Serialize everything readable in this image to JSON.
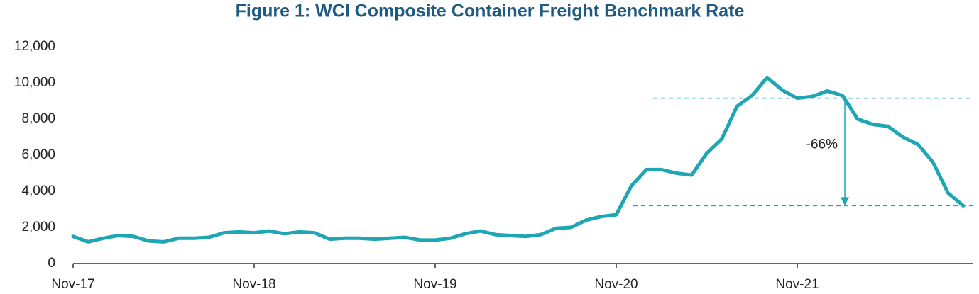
{
  "chart_data": {
    "type": "line",
    "title": "Figure 1: WCI Composite Container Freight Benchmark Rate",
    "categories": [
      "Nov-17",
      null,
      null,
      null,
      null,
      null,
      null,
      null,
      null,
      null,
      null,
      null,
      "Nov-18",
      null,
      null,
      null,
      null,
      null,
      null,
      null,
      null,
      null,
      null,
      null,
      "Nov-19",
      null,
      null,
      null,
      null,
      null,
      null,
      null,
      null,
      null,
      null,
      null,
      "Nov-20",
      null,
      null,
      null,
      null,
      null,
      null,
      null,
      null,
      null,
      null,
      null,
      "Nov-21",
      null,
      null,
      null,
      null,
      null,
      null,
      null,
      null,
      null,
      null,
      null
    ],
    "series": [
      {
        "name": "WCI Composite",
        "color": "#1ea6b4",
        "values": [
          1500,
          1200,
          1400,
          1550,
          1500,
          1250,
          1200,
          1400,
          1400,
          1450,
          1700,
          1750,
          1700,
          1800,
          1650,
          1750,
          1700,
          1350,
          1400,
          1400,
          1350,
          1400,
          1450,
          1300,
          1300,
          1400,
          1650,
          1800,
          1600,
          1550,
          1500,
          1600,
          1950,
          2000,
          2400,
          2600,
          2700,
          4300,
          5200,
          5200,
          5000,
          4900,
          6100,
          6900,
          8700,
          9300,
          10300,
          9600,
          9150,
          9250,
          9550,
          9300,
          8000,
          7700,
          7600,
          7000,
          6600,
          5600,
          3900,
          3200
        ]
      }
    ],
    "ylim": [
      0,
      12000
    ],
    "yticks": [
      0,
      {
        "value": 2000,
        "label": "2,000"
      },
      {
        "value": 4000,
        "label": "4,000"
      },
      {
        "value": 6000,
        "label": "6,000"
      },
      {
        "value": 8000,
        "label": "8,000"
      },
      {
        "value": 10000,
        "label": "10,000"
      },
      {
        "value": 12000,
        "label": "12,000"
      }
    ],
    "reference_lines": [
      9150,
      3200
    ],
    "annotation": "-66%",
    "grid": false
  }
}
